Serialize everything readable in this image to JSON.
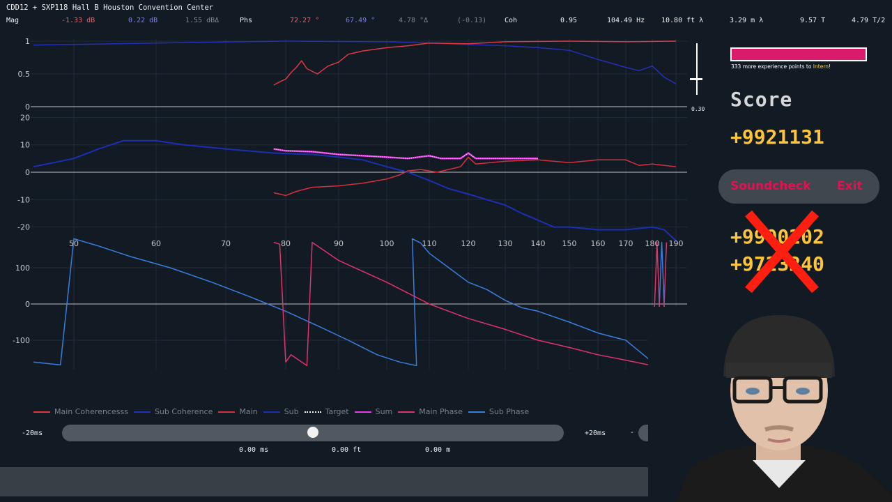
{
  "header": {
    "title": "CDD12 + SXP118 Hall B Houston Convention Center",
    "mag_label": "Mag",
    "mag_main": "-1.33 dB",
    "mag_sub": "0.22 dB",
    "mag_delta": "1.55 dBΔ",
    "phs_label": "Phs",
    "phs_main": "72.27 °",
    "phs_sub": "67.49 °",
    "phs_delta": "4.78 °Δ",
    "phs_extra": "(-0.13)",
    "coh_label": "Coh",
    "coh_value": "0.95",
    "freq": "104.49 Hz",
    "wl_ft": "10.80 ft λ",
    "wl_m": "3.29 m λ",
    "period": "9.57 T",
    "half_period": "4.79 T/2"
  },
  "colors": {
    "main": "#d6303c",
    "sub": "#1c2fb4",
    "sum": "#e83ce8",
    "main_phase": "#e0336a",
    "sub_phase": "#3a7ee0",
    "coh_main": "#e03840",
    "coh_sub": "#2430b8"
  },
  "coherence_plot": {
    "y_ticks": [
      "1",
      "0.5",
      "0"
    ],
    "marker_value": "0.30"
  },
  "magnitude_plot": {
    "y_ticks": [
      "20",
      "10",
      "0",
      "-10",
      "-20"
    ]
  },
  "phase_plot": {
    "y_ticks": [
      "100",
      "0",
      "-100"
    ]
  },
  "freq_axis": [
    "50",
    "60",
    "70",
    "80",
    "90",
    "100",
    "110",
    "120",
    "130",
    "140",
    "150",
    "160",
    "170",
    "180",
    "190"
  ],
  "legend": [
    {
      "label": "Main Coherencesss",
      "color": "#e03840"
    },
    {
      "label": "Sub Coherence",
      "color": "#2430b8"
    },
    {
      "label": "Main",
      "color": "#d6303c"
    },
    {
      "label": "Sub",
      "color": "#1c2fb4"
    },
    {
      "label": "Target",
      "color": "#ffffff"
    },
    {
      "label": "Sum",
      "color": "#e83ce8"
    },
    {
      "label": "Main Phase",
      "color": "#e0336a"
    },
    {
      "label": "Sub Phase",
      "color": "#3a7ee0"
    }
  ],
  "delay": {
    "min_label": "-20ms",
    "max_label": "+20ms",
    "ms": "0.00 ms",
    "ft": "0.00 ft",
    "m": "0.00 m",
    "minus": "-",
    "plus": "+"
  },
  "game": {
    "xp_text_pre": "333 more experience points to ",
    "xp_rank": "Intern",
    "xp_text_post": "!",
    "score_label": "Score",
    "score_value": "+9921131",
    "soundcheck": "Soundcheck",
    "exit": "Exit",
    "prev_score_1": "+9900202",
    "prev_score_2": "+9723240"
  }
}
